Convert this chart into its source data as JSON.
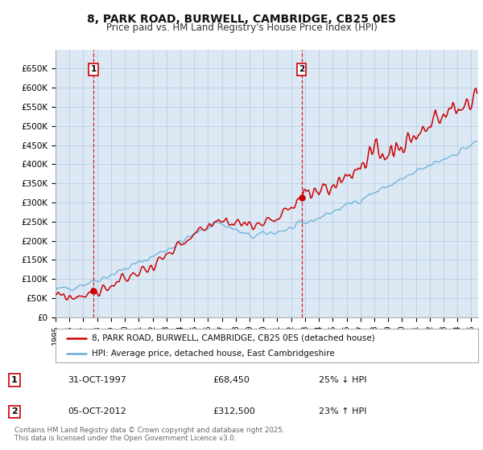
{
  "title": "8, PARK ROAD, BURWELL, CAMBRIDGE, CB25 0ES",
  "subtitle": "Price paid vs. HM Land Registry's House Price Index (HPI)",
  "title_fontsize": 10,
  "subtitle_fontsize": 8.5,
  "background_color": "#ffffff",
  "plot_bg_color": "#dce9f5",
  "grid_color": "#b8cfe0",
  "price_paid_color": "#cc0000",
  "hpi_color": "#6aaed6",
  "sale1_date": "31-OCT-1997",
  "sale1_price": 68450,
  "sale1_pct": "25% ↓ HPI",
  "sale2_date": "05-OCT-2012",
  "sale2_price": 312500,
  "sale2_pct": "23% ↑ HPI",
  "legend_line1": "8, PARK ROAD, BURWELL, CAMBRIDGE, CB25 0ES (detached house)",
  "legend_line2": "HPI: Average price, detached house, East Cambridgeshire",
  "footer": "Contains HM Land Registry data © Crown copyright and database right 2025.\nThis data is licensed under the Open Government Licence v3.0.",
  "ylim": [
    0,
    700000
  ],
  "yticks": [
    0,
    50000,
    100000,
    150000,
    200000,
    250000,
    300000,
    350000,
    400000,
    450000,
    500000,
    550000,
    600000,
    650000
  ],
  "ytick_labels": [
    "£0",
    "£50K",
    "£100K",
    "£150K",
    "£200K",
    "£250K",
    "£300K",
    "£350K",
    "£400K",
    "£450K",
    "£500K",
    "£550K",
    "£600K",
    "£650K"
  ]
}
